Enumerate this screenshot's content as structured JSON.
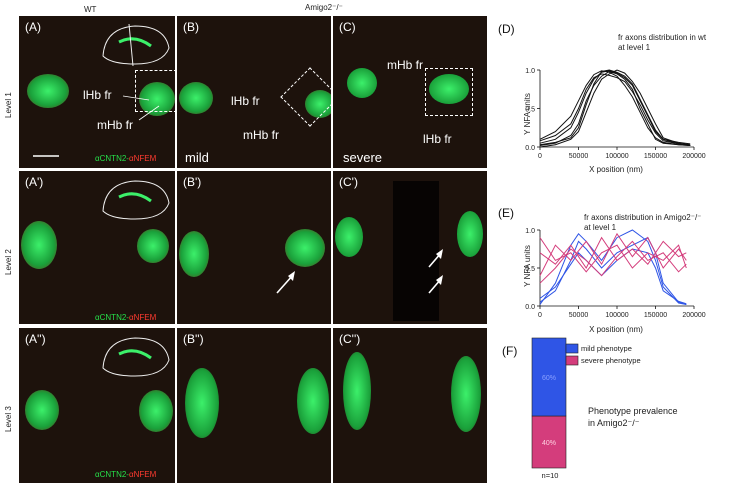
{
  "header": {
    "wt": "WT",
    "mutant": "Amigo2⁻/⁻"
  },
  "levels": [
    "Level 1",
    "Level 2",
    "Level 3"
  ],
  "panels": {
    "A": "(A)",
    "B": "(B)",
    "C": "(C)",
    "A1": "(A')",
    "B1": "(B')",
    "C1": "(C')",
    "A2": "(A'')",
    "B2": "(B'')",
    "C2": "(C'')"
  },
  "annotations": {
    "lhb_fr": "lHb fr",
    "mhb_fr": "mHb fr",
    "mild": "mild",
    "severe": "severe"
  },
  "stain": {
    "green": "αCNTN2",
    "sep": "-",
    "red": "αNFEM"
  },
  "chart_D": {
    "label": "(D)",
    "title_line1": "fr axons distribution in wt",
    "title_line2": "at level 1",
    "ylabel": "Y NFA units",
    "xlabel": "X position (nm)",
    "yticks": [
      "0.0",
      "0.5",
      "1.0"
    ],
    "xticks": [
      "0",
      "50000",
      "100000",
      "150000",
      "200000"
    ]
  },
  "chart_E": {
    "label": "(E)",
    "title_line1": "fr axons distribution in Amigo2⁻/⁻",
    "title_line2": "at level 1",
    "ylabel": "Y NFA units",
    "xlabel": "X position (nm)",
    "yticks": [
      "0.0",
      "0.5",
      "1.0"
    ],
    "xticks": [
      "0",
      "50000",
      "100000",
      "150000",
      "200000"
    ]
  },
  "chart_F": {
    "label": "(F)",
    "legend_mild": "mild phenotype",
    "legend_severe": "severe phenotype",
    "pct_mild": "60%",
    "pct_severe": "40%",
    "n": "n=10",
    "caption_line1": "Phenotype prevalence",
    "caption_line2": "in Amigo2⁻/⁻"
  },
  "colors": {
    "mild": "#2f55e6",
    "severe": "#d43d7c",
    "wt_line": "#111111"
  },
  "chart_data": [
    {
      "type": "line",
      "title": "fr axons distribution in wt at level 1",
      "xlabel": "X position (nm)",
      "ylabel": "Y NFA units",
      "xlim": [
        0,
        200000
      ],
      "ylim": [
        0,
        1
      ],
      "series": [
        {
          "x": [
            0,
            20000,
            40000,
            50000,
            60000,
            70000,
            80000,
            90000,
            100000,
            110000,
            120000,
            130000,
            140000,
            150000,
            160000,
            180000,
            195000
          ],
          "y": [
            0.02,
            0.05,
            0.15,
            0.3,
            0.6,
            0.8,
            0.92,
            0.98,
            0.95,
            0.88,
            0.75,
            0.5,
            0.3,
            0.1,
            0.05,
            0.03,
            0.02
          ]
        },
        {
          "x": [
            0,
            20000,
            40000,
            50000,
            60000,
            70000,
            80000,
            90000,
            100000,
            110000,
            120000,
            130000,
            140000,
            150000,
            160000,
            180000,
            195000
          ],
          "y": [
            0.05,
            0.1,
            0.25,
            0.45,
            0.7,
            0.88,
            0.97,
            0.99,
            0.96,
            0.9,
            0.8,
            0.6,
            0.4,
            0.2,
            0.1,
            0.06,
            0.04
          ]
        },
        {
          "x": [
            0,
            20000,
            40000,
            50000,
            60000,
            70000,
            80000,
            90000,
            100000,
            110000,
            120000,
            130000,
            140000,
            150000,
            160000,
            180000,
            195000
          ],
          "y": [
            0.0,
            0.03,
            0.1,
            0.2,
            0.45,
            0.7,
            0.88,
            0.95,
            1.0,
            0.96,
            0.85,
            0.7,
            0.5,
            0.3,
            0.12,
            0.05,
            0.03
          ]
        },
        {
          "x": [
            0,
            20000,
            40000,
            50000,
            60000,
            70000,
            80000,
            90000,
            100000,
            110000,
            120000,
            130000,
            140000,
            150000,
            160000,
            180000,
            195000
          ],
          "y": [
            0.08,
            0.15,
            0.3,
            0.5,
            0.75,
            0.9,
            0.95,
            0.93,
            0.9,
            0.85,
            0.72,
            0.55,
            0.35,
            0.18,
            0.08,
            0.04,
            0.02
          ]
        },
        {
          "x": [
            0,
            20000,
            40000,
            50000,
            60000,
            70000,
            80000,
            90000,
            100000,
            110000,
            120000,
            130000,
            140000,
            150000,
            160000,
            180000,
            195000
          ],
          "y": [
            0.03,
            0.06,
            0.12,
            0.25,
            0.55,
            0.82,
            0.98,
            1.0,
            0.97,
            0.92,
            0.82,
            0.62,
            0.42,
            0.22,
            0.1,
            0.04,
            0.02
          ]
        },
        {
          "x": [
            0,
            20000,
            40000,
            50000,
            60000,
            70000,
            80000,
            90000,
            100000,
            110000,
            120000,
            130000,
            140000,
            150000,
            160000,
            180000,
            195000
          ],
          "y": [
            0.1,
            0.2,
            0.4,
            0.6,
            0.8,
            0.94,
            0.99,
            0.97,
            0.92,
            0.8,
            0.65,
            0.45,
            0.25,
            0.12,
            0.06,
            0.03,
            0.02
          ]
        }
      ]
    },
    {
      "type": "line",
      "title": "fr axons distribution in Amigo2⁻/⁻ at level 1",
      "xlabel": "X position (nm)",
      "ylabel": "Y NFA units",
      "xlim": [
        0,
        200000
      ],
      "ylim": [
        0,
        1
      ],
      "series": [
        {
          "name": "mild phenotype",
          "x": [
            0,
            20000,
            40000,
            50000,
            60000,
            80000,
            100000,
            120000,
            140000,
            150000,
            160000,
            180000,
            190000
          ],
          "y": [
            0.05,
            0.2,
            0.6,
            0.85,
            0.75,
            0.5,
            0.7,
            0.8,
            0.9,
            0.7,
            0.3,
            0.05,
            0.02
          ]
        },
        {
          "name": "mild phenotype",
          "x": [
            0,
            20000,
            40000,
            50000,
            60000,
            80000,
            100000,
            120000,
            140000,
            150000,
            160000,
            180000,
            190000
          ],
          "y": [
            0.02,
            0.3,
            0.8,
            0.95,
            0.85,
            0.6,
            0.9,
            1.0,
            0.85,
            0.6,
            0.25,
            0.04,
            0.02
          ]
        },
        {
          "name": "mild phenotype",
          "x": [
            0,
            20000,
            40000,
            50000,
            60000,
            80000,
            100000,
            120000,
            140000,
            150000,
            160000,
            180000,
            190000
          ],
          "y": [
            0.1,
            0.25,
            0.55,
            0.7,
            0.6,
            0.4,
            0.6,
            0.75,
            0.7,
            0.5,
            0.2,
            0.06,
            0.03
          ]
        },
        {
          "name": "severe phenotype",
          "x": [
            0,
            20000,
            40000,
            60000,
            80000,
            100000,
            120000,
            140000,
            160000,
            180000,
            190000
          ],
          "y": [
            0.7,
            0.55,
            0.8,
            0.5,
            0.9,
            0.6,
            0.75,
            0.55,
            0.85,
            0.65,
            0.7
          ]
        },
        {
          "name": "severe phenotype",
          "x": [
            0,
            20000,
            40000,
            60000,
            80000,
            100000,
            120000,
            140000,
            160000,
            180000,
            190000
          ],
          "y": [
            0.4,
            0.8,
            0.6,
            0.85,
            0.55,
            0.95,
            0.65,
            0.9,
            0.5,
            0.75,
            0.6
          ]
        },
        {
          "name": "severe phenotype",
          "x": [
            0,
            20000,
            40000,
            60000,
            80000,
            100000,
            120000,
            140000,
            160000,
            180000,
            190000
          ],
          "y": [
            0.9,
            0.6,
            0.7,
            0.45,
            0.7,
            0.8,
            0.5,
            0.7,
            0.6,
            0.8,
            0.5
          ]
        },
        {
          "name": "severe phenotype",
          "x": [
            0,
            20000,
            40000,
            60000,
            80000,
            100000,
            120000,
            140000,
            160000,
            180000,
            190000
          ],
          "y": [
            0.3,
            0.5,
            0.75,
            0.6,
            0.4,
            0.65,
            0.85,
            0.6,
            0.7,
            0.45,
            0.55
          ]
        }
      ]
    },
    {
      "type": "bar",
      "title": "Phenotype prevalence in Amigo2⁻/⁻",
      "categories": [
        "n=10"
      ],
      "series": [
        {
          "name": "mild phenotype",
          "values": [
            60
          ]
        },
        {
          "name": "severe phenotype",
          "values": [
            40
          ]
        }
      ],
      "stacked": true,
      "ylim": [
        0,
        100
      ]
    }
  ]
}
